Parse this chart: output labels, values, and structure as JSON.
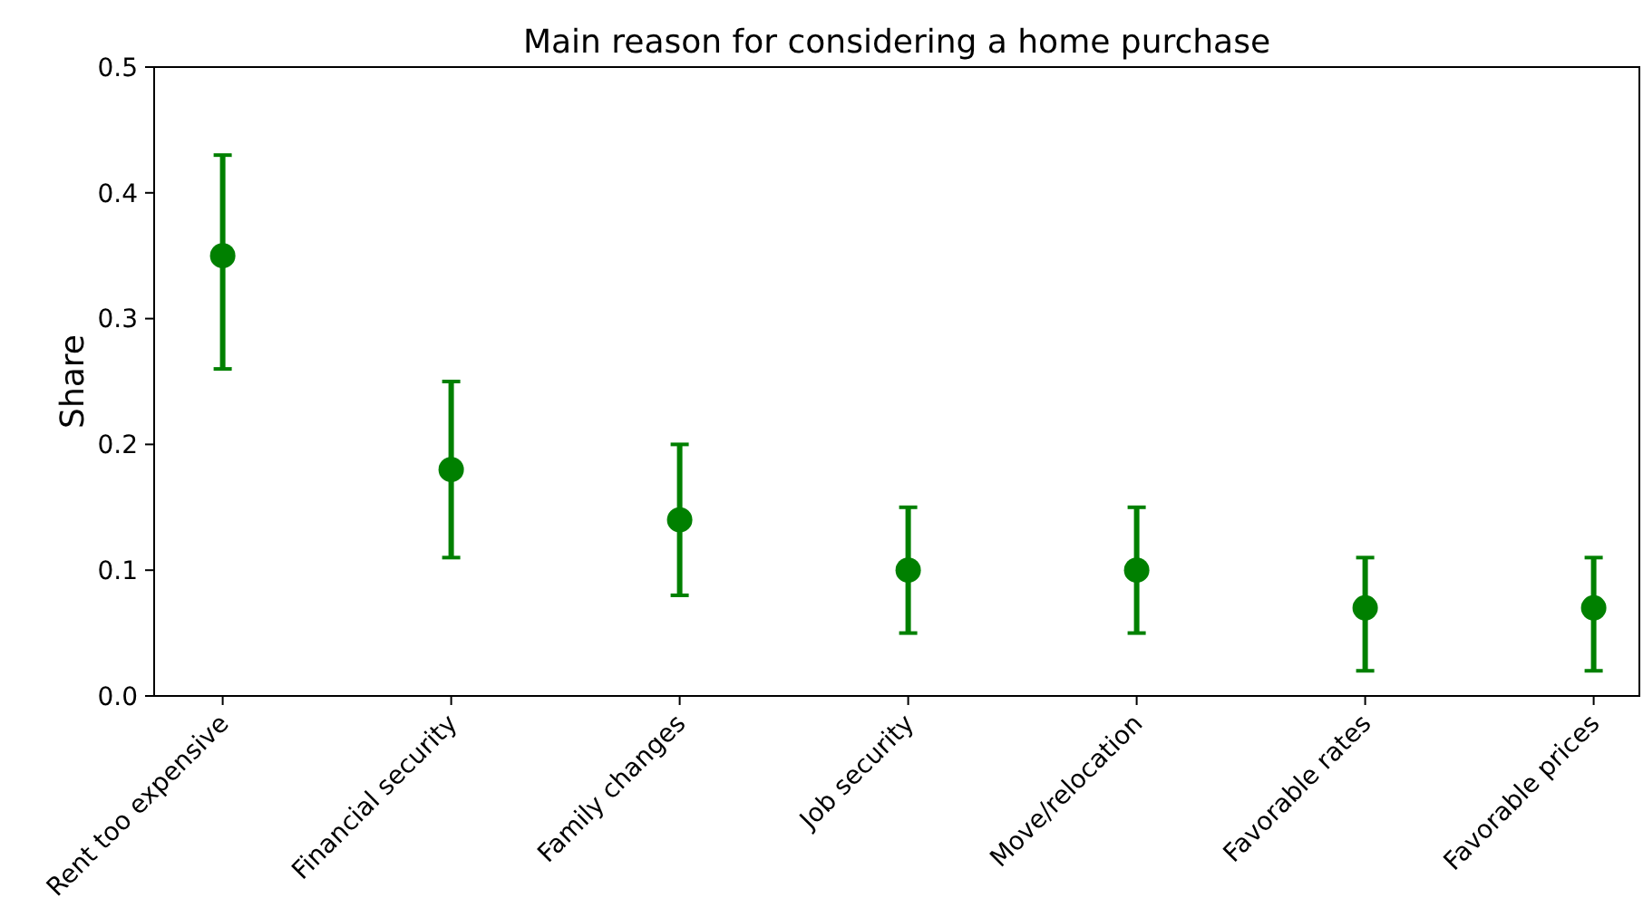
{
  "chart_data": {
    "type": "scatter",
    "title": "Main reason for considering a home purchase",
    "ylabel": "Share",
    "categories": [
      "Rent too expensive",
      "Financial security",
      "Family changes",
      "Job security",
      "Move/relocation",
      "Favorable rates",
      "Favorable prices"
    ],
    "values": [
      0.35,
      0.18,
      0.14,
      0.1,
      0.1,
      0.07,
      0.07
    ],
    "errors": [
      [
        0.26,
        0.43
      ],
      [
        0.11,
        0.25
      ],
      [
        0.08,
        0.2
      ],
      [
        0.05,
        0.15
      ],
      [
        0.05,
        0.15
      ],
      [
        0.02,
        0.11
      ],
      [
        0.02,
        0.11
      ]
    ],
    "color": "#008000",
    "marker": "circle",
    "ylim": [
      0,
      0.5
    ],
    "yticks": [
      {
        "value": 0,
        "label": "0.0"
      },
      0.1,
      0.2,
      0.3,
      0.4,
      0.5
    ],
    "grid": false
  }
}
